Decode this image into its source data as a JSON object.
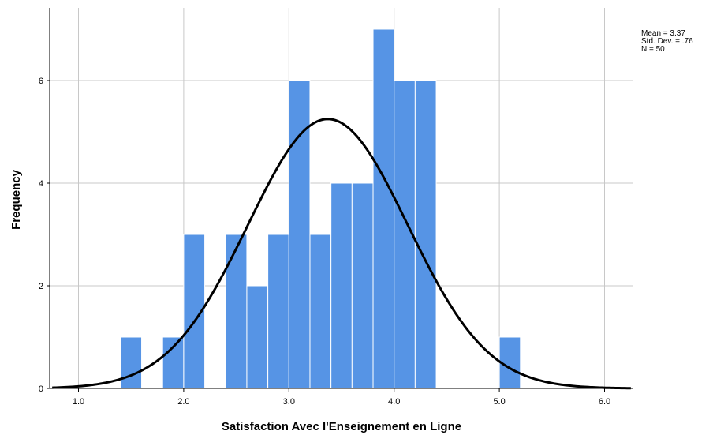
{
  "chart_data": {
    "type": "bar",
    "subtype": "histogram",
    "xlabel": "Satisfaction Avec l'Enseignement en Ligne",
    "ylabel": "Frequency",
    "xlim": [
      0.75,
      6.25
    ],
    "ylim": [
      0,
      7.4
    ],
    "x_ticks": [
      1.0,
      2.0,
      3.0,
      4.0,
      5.0,
      6.0
    ],
    "x_tick_labels": [
      "1.0",
      "2.0",
      "3.0",
      "4.0",
      "5.0",
      "6.0"
    ],
    "y_ticks": [
      0,
      2,
      4,
      6
    ],
    "y_tick_labels": [
      "0",
      "2",
      "4",
      "6"
    ],
    "bin_width": 0.2,
    "bins": [
      {
        "x0": 1.4,
        "x1": 1.6,
        "count": 1
      },
      {
        "x0": 1.8,
        "x1": 2.0,
        "count": 1
      },
      {
        "x0": 2.0,
        "x1": 2.2,
        "count": 3
      },
      {
        "x0": 2.4,
        "x1": 2.6,
        "count": 3
      },
      {
        "x0": 2.6,
        "x1": 2.8,
        "count": 2
      },
      {
        "x0": 2.8,
        "x1": 3.0,
        "count": 3
      },
      {
        "x0": 3.0,
        "x1": 3.2,
        "count": 6
      },
      {
        "x0": 3.2,
        "x1": 3.4,
        "count": 3
      },
      {
        "x0": 3.4,
        "x1": 3.6,
        "count": 4
      },
      {
        "x0": 3.6,
        "x1": 3.8,
        "count": 4
      },
      {
        "x0": 3.8,
        "x1": 4.0,
        "count": 7
      },
      {
        "x0": 4.0,
        "x1": 4.2,
        "count": 6
      },
      {
        "x0": 4.2,
        "x1": 4.4,
        "count": 6
      },
      {
        "x0": 5.0,
        "x1": 5.2,
        "count": 1
      }
    ],
    "normal_curve": {
      "mean": 3.37,
      "sd": 0.76,
      "n": 50
    },
    "grid": true,
    "bar_color": "#5694E5",
    "bar_edge_color": "#ffffff",
    "curve_color": "#000000",
    "grid_color": "#c8c8c8",
    "stats_text": [
      "Mean = 3.37",
      "Std. Dev. = .76",
      "N = 50"
    ]
  }
}
